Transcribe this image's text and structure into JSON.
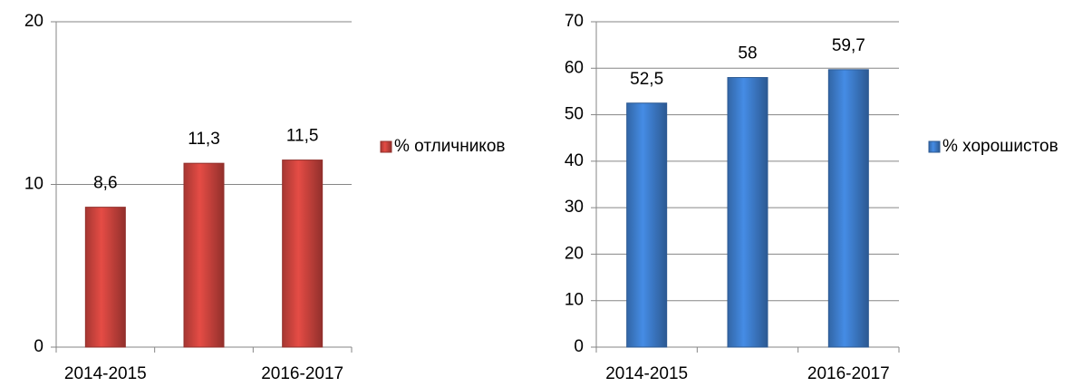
{
  "chart_data": [
    {
      "type": "bar",
      "categories": [
        "2014-2015",
        null,
        "2016-2017"
      ],
      "series": [
        {
          "name": "% отличников",
          "color": "#d0453f",
          "values": [
            8.6,
            11.3,
            11.5
          ],
          "value_labels": [
            "8,6",
            "11,3",
            "11,5"
          ]
        }
      ],
      "ylim": [
        0,
        20
      ],
      "yticks": [
        0,
        10,
        20
      ],
      "grid": true,
      "legend": "right"
    },
    {
      "type": "bar",
      "categories": [
        "2014-2015",
        null,
        "2016-2017"
      ],
      "series": [
        {
          "name": "% хорошистов",
          "color": "#3f7fd0",
          "values": [
            52.5,
            58,
            59.7
          ],
          "value_labels": [
            "52,5",
            "58",
            "59,7"
          ]
        }
      ],
      "ylim": [
        0,
        70
      ],
      "yticks": [
        0,
        10,
        20,
        30,
        40,
        50,
        60,
        70
      ],
      "grid": true,
      "legend": "right"
    }
  ]
}
